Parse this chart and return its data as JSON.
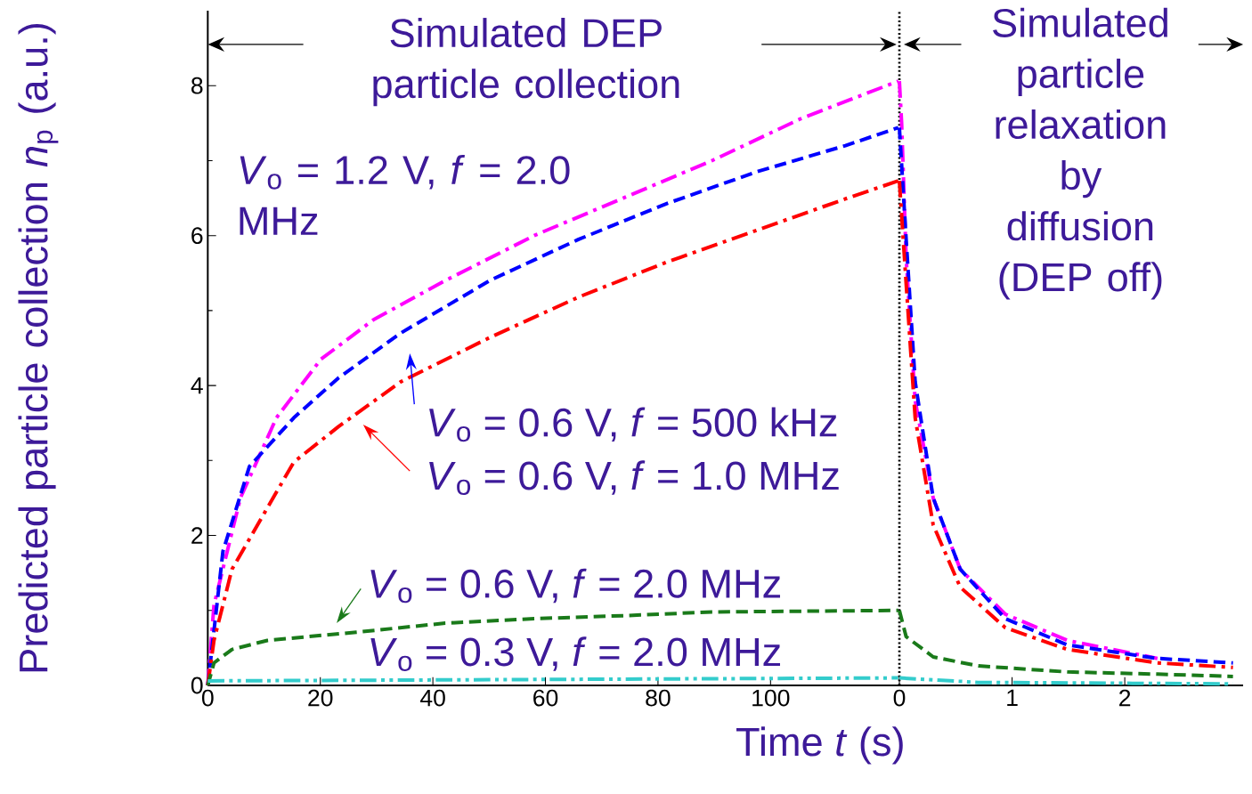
{
  "chart_data": [
    {
      "type": "line",
      "title": "Simulated DEP particle collection",
      "xlabel": "Time *t* (s)",
      "ylabel": "Predicted particle collection *n*$_{p}$ (a.u.)",
      "xlim": [
        0,
        123
      ],
      "xticks": [
        0,
        20,
        40,
        60,
        80,
        100
      ],
      "ylim": [
        0,
        9
      ],
      "yticks": [
        0,
        2,
        4,
        6,
        8
      ],
      "annotations": [
        "*V*$_{o}$ = 1.2 V, *f*  = 2.0 MHz",
        "*V*$_{o}$ = 0.6 V, *f*  = 500 kHz",
        "*V*$_{o}$ = 0.6 V, *f*  = 1.0  MHz",
        "*V*$_{o}$ = 0.6 V, *f*  = 2.0  MHz",
        "*V*$_{o}$ = 0.3 V, *f*  = 2.0  MHz"
      ],
      "series": [
        {
          "color": "#ff00ff",
          "line_style": "dashdot",
          "x": [
            0,
            1.1,
            5.8,
            12.2,
            20.1,
            29.5,
            42.2,
            58,
            73.8,
            89.6,
            105.4,
            122.7
          ],
          "values": [
            0,
            1.07,
            2.5,
            3.57,
            4.35,
            4.88,
            5.4,
            6.0,
            6.5,
            7.0,
            7.56,
            8.06
          ]
        },
        {
          "color": "#0000ff",
          "line_style": "dashed",
          "x": [
            0,
            2.7,
            7.4,
            15.3,
            23.2,
            34.3,
            50.1,
            65.9,
            81.7,
            97.5,
            113.3,
            122.7
          ],
          "values": [
            0,
            1.79,
            2.92,
            3.57,
            4.1,
            4.7,
            5.4,
            5.95,
            6.43,
            6.85,
            7.2,
            7.44
          ]
        },
        {
          "color": "#ff0000",
          "line_style": "dashdot",
          "x": [
            0,
            1.1,
            4.3,
            15.3,
            23.2,
            34.3,
            50.1,
            65.9,
            81.7,
            97.5,
            113.3,
            122.7
          ],
          "values": [
            0,
            0.6,
            1.55,
            2.98,
            3.45,
            4.05,
            4.64,
            5.18,
            5.65,
            6.07,
            6.49,
            6.73
          ]
        },
        {
          "color": "#1a7a1a",
          "line_style": "dashed",
          "x": [
            0,
            1.1,
            4.3,
            10.6,
            26.4,
            42.2,
            58,
            73.8,
            89.6,
            122.7
          ],
          "values": [
            0,
            0.3,
            0.48,
            0.6,
            0.71,
            0.83,
            0.89,
            0.93,
            0.98,
            1.0
          ]
        },
        {
          "color": "#33cccc",
          "line_style": "dashdotdot",
          "x": [
            0,
            122.7
          ],
          "values": [
            0.06,
            0.1
          ]
        }
      ]
    },
    {
      "type": "line",
      "title": "Simulated particle relaxation by diffusion (DEP off)",
      "xlim": [
        0,
        3.05
      ],
      "xticks": [
        0,
        1,
        2
      ],
      "ylim": [
        0,
        9
      ],
      "series": [
        {
          "color": "#ff00ff",
          "line_style": "dashdot",
          "x": [
            0,
            0.02,
            0.06,
            0.14,
            0.3,
            0.54,
            0.94,
            1.49,
            2.29
          ],
          "values": [
            8.06,
            7.5,
            5.7,
            3.8,
            2.5,
            1.55,
            0.95,
            0.6,
            0.36
          ]
        },
        {
          "color": "#0000ff",
          "line_style": "dashed",
          "x": [
            0,
            0.06,
            0.14,
            0.3,
            0.54,
            0.94,
            1.49,
            2.29,
            2.96
          ],
          "values": [
            7.44,
            5.95,
            4.05,
            2.5,
            1.55,
            0.89,
            0.54,
            0.36,
            0.3
          ]
        },
        {
          "color": "#ff0000",
          "line_style": "dashdot",
          "x": [
            0,
            0.06,
            0.14,
            0.3,
            0.54,
            0.94,
            1.49,
            2.29,
            2.96
          ],
          "values": [
            6.73,
            5.36,
            3.57,
            2.14,
            1.31,
            0.77,
            0.48,
            0.3,
            0.24
          ]
        },
        {
          "color": "#1a7a1a",
          "line_style": "dashed",
          "x": [
            0,
            0.06,
            0.3,
            0.7,
            1.49,
            2.29,
            2.96
          ],
          "values": [
            1.0,
            0.65,
            0.38,
            0.26,
            0.18,
            0.15,
            0.12
          ]
        },
        {
          "color": "#33cccc",
          "line_style": "dashdotdot",
          "x": [
            0,
            0.7,
            2.96
          ],
          "values": [
            0.1,
            0.04,
            0.02
          ]
        }
      ]
    }
  ]
}
